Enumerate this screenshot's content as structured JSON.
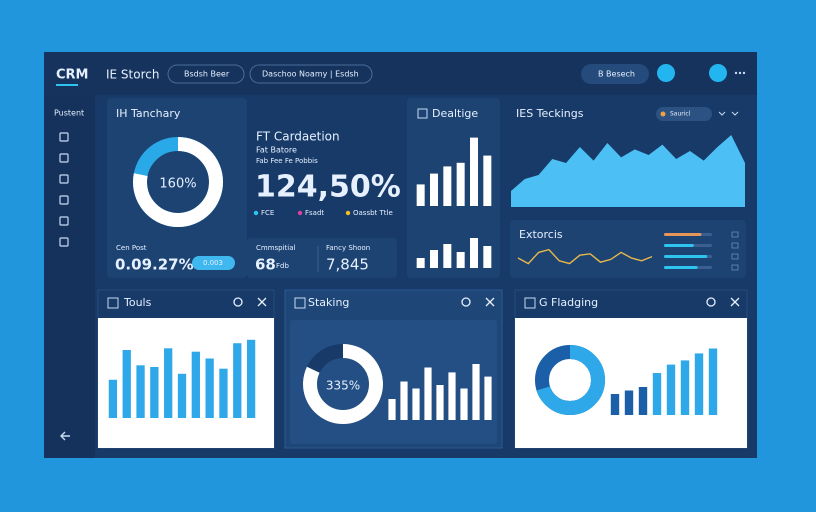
{
  "sidebar": {
    "logo": "CRM",
    "section": "Pustent"
  },
  "topbar": {
    "title": "IE Storch",
    "filter1": "Bsdsh Beer",
    "filter2": "Daschoo Noamy | Esdsh",
    "search": "B Besech"
  },
  "tanchary": {
    "title": "IH Tanchary",
    "donut_label": "160%",
    "donut_fill": 78,
    "stat_label": "Cen Post",
    "stat_value": "0.09.27%",
    "badge": "0.003"
  },
  "cardaetion": {
    "title": "FT Cardaetion",
    "subtitle": "Fat Batore",
    "caption": "Fab Fee Fe Pobbis",
    "big_value": "124,50%",
    "legend": [
      "FCE",
      "Fsadt",
      "Oassbt Ttle"
    ],
    "stat1_label": "Cmmspitial",
    "stat1_value": "68",
    "stat1_sub": "Fdb",
    "stat2_label": "Fancy Shoon",
    "stat2_value": "7,845"
  },
  "dealtige": {
    "title": "Dealtige",
    "bars_top": [
      30,
      45,
      55,
      60,
      95,
      70
    ],
    "bars_bottom": [
      25,
      45,
      60,
      40,
      75,
      55
    ]
  },
  "teckings": {
    "title": "IES Teckings",
    "tag": "Sauricl",
    "values": [
      20,
      35,
      40,
      60,
      55,
      75,
      58,
      80,
      62,
      72,
      65,
      78,
      60,
      70,
      58,
      75,
      90,
      55
    ]
  },
  "extorcis": {
    "title": "Extorcis",
    "values": [
      50,
      30,
      70,
      80,
      40,
      30,
      60,
      65,
      35,
      45,
      70,
      50,
      40,
      55
    ],
    "progress": [
      78,
      62,
      90,
      70
    ]
  },
  "touls": {
    "title": "Touls",
    "values": [
      45,
      80,
      62,
      60,
      82,
      52,
      78,
      70,
      58,
      88,
      92
    ]
  },
  "staking": {
    "title": "Staking",
    "donut_label": "335%",
    "donut_fill": 82,
    "values": [
      30,
      55,
      45,
      75,
      50,
      68,
      45,
      80,
      62
    ]
  },
  "flagging": {
    "title": "G Fladging",
    "donut_fill": 70,
    "values": [
      30,
      35,
      40,
      60,
      72,
      78,
      88,
      95
    ]
  }
}
